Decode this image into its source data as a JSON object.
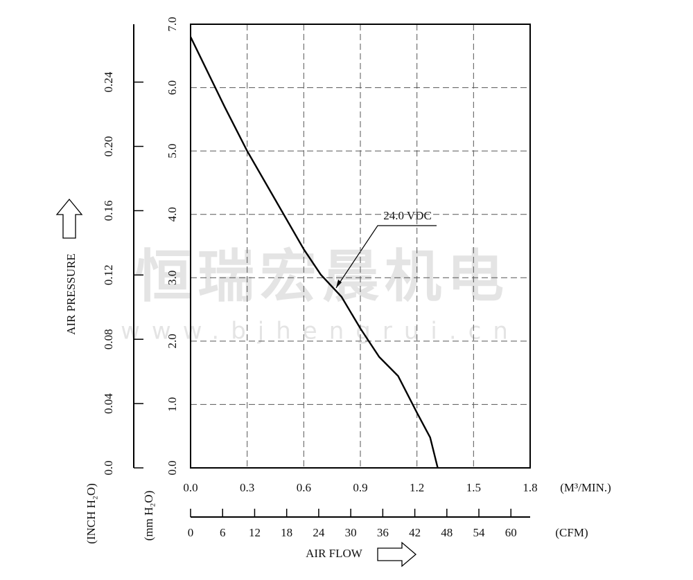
{
  "chart_data": {
    "type": "line",
    "watermark": "恒瑞宏晨机电",
    "watermark_url": "www.bjhengrui.cn",
    "annotation": "24.0 VDC",
    "ylabel": "AIR PRESSURE",
    "xlabel": "AIR FLOW",
    "y_unit": "(mm H₂O)",
    "y2_unit": "(INCH H₂O)",
    "x_unit": "(M³/MIN.)",
    "x2_unit": "(CFM)",
    "grid": true,
    "series": [
      {
        "name": "24.0 VDC",
        "color": "#000000",
        "x": [
          0,
          0.18,
          0.3,
          0.6,
          0.69,
          0.8,
          0.9,
          1.0,
          1.1,
          1.2,
          1.27,
          1.31
        ],
        "values": [
          6.8,
          5.7,
          5.0,
          3.45,
          3.05,
          2.7,
          2.2,
          1.75,
          1.45,
          0.87,
          0.48,
          0
        ]
      }
    ],
    "xlim": [
      0,
      1.8
    ],
    "xticks": [
      {
        "value": 0,
        "label": "0.0"
      },
      0.3,
      0.6,
      0.9,
      1.2,
      1.5,
      1.8
    ],
    "ylim": [
      0,
      7
    ],
    "yticks": [
      {
        "value": 0,
        "label": "0.0"
      },
      {
        "value": 1,
        "label": "1.0"
      },
      {
        "value": 2,
        "label": "2.0"
      },
      {
        "value": 3,
        "label": "3.0"
      },
      {
        "value": 4,
        "label": "4.0"
      },
      {
        "value": 5,
        "label": "5.0"
      },
      {
        "value": 6,
        "label": "6.0"
      },
      {
        "value": 7,
        "label": "7.0"
      }
    ],
    "y2lim": [
      0,
      0.276
    ],
    "y2ticks": [
      {
        "value": 0,
        "label": "0.0"
      },
      0.04,
      0.08,
      0.12,
      0.16,
      {
        "value": 0.2,
        "label": "0.20"
      },
      0.24
    ],
    "x2lim": [
      0,
      63.6
    ],
    "x2ticks": [
      0,
      6,
      12,
      18,
      24,
      30,
      36,
      42,
      48,
      54,
      60
    ]
  }
}
